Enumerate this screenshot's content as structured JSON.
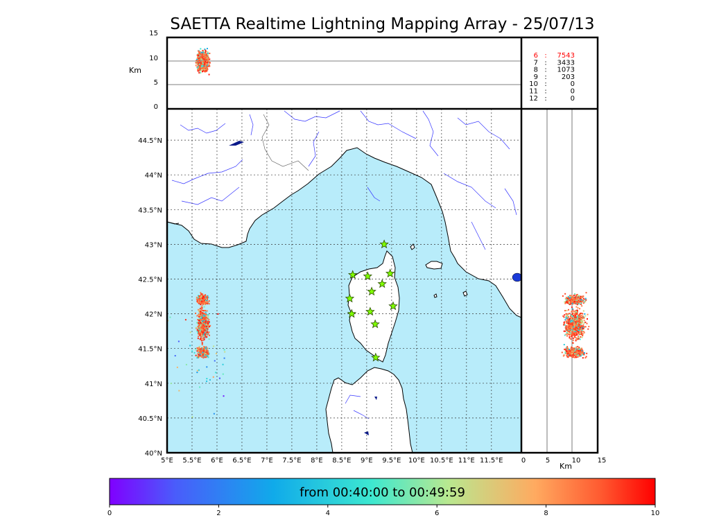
{
  "title": "SAETTA Realtime Lightning Mapping Array - 25/07/13",
  "top_panel": {
    "ylabel": "Km",
    "yticks": [
      "15",
      "10",
      "5",
      "0"
    ]
  },
  "map": {
    "lat_labels": [
      "44.5°N",
      "44°N",
      "43.5°N",
      "43°N",
      "42.5°N",
      "42°N",
      "41.5°N",
      "41°N",
      "40.5°N",
      "40°N"
    ],
    "lon_labels": [
      "5°E",
      "5.5°E",
      "6°E",
      "6.5°E",
      "7°E",
      "7.5°E",
      "8°E",
      "8.5°E",
      "9°E",
      "9.5°E",
      "10°E",
      "10.5°E",
      "11°E",
      "11.5°E"
    ],
    "sea_color": "#b8ecfa",
    "land_color": "#ffffff",
    "stations": [
      {
        "lon": 9.35,
        "lat": 43.0
      },
      {
        "lon": 8.72,
        "lat": 42.56
      },
      {
        "lon": 9.02,
        "lat": 42.54
      },
      {
        "lon": 9.47,
        "lat": 42.58
      },
      {
        "lon": 9.1,
        "lat": 42.32
      },
      {
        "lon": 9.31,
        "lat": 42.43
      },
      {
        "lon": 8.66,
        "lat": 42.22
      },
      {
        "lon": 9.53,
        "lat": 42.11
      },
      {
        "lon": 9.07,
        "lat": 42.03
      },
      {
        "lon": 8.7,
        "lat": 42.0
      },
      {
        "lon": 9.17,
        "lat": 41.85
      },
      {
        "lon": 9.18,
        "lat": 41.37
      }
    ]
  },
  "side_panel": {
    "xlabel": "Km",
    "xticks": [
      "0",
      "5",
      "10",
      "15"
    ]
  },
  "station_counts": [
    {
      "n": "6",
      "sep": ":",
      "count": "7543",
      "highlight": true
    },
    {
      "n": "7",
      "sep": ":",
      "count": "3433",
      "highlight": false
    },
    {
      "n": "8",
      "sep": ":",
      "count": "1073",
      "highlight": false
    },
    {
      "n": "9",
      "sep": ":",
      "count": "203",
      "highlight": false
    },
    {
      "n": "10",
      "sep": ":",
      "count": "0",
      "highlight": false
    },
    {
      "n": "11",
      "sep": ":",
      "count": "0",
      "highlight": false
    },
    {
      "n": "12",
      "sep": ":",
      "count": "0",
      "highlight": false
    }
  ],
  "colorbar": {
    "label": "from 00:40:00 to 00:49:59",
    "ticks": [
      "0",
      "2",
      "4",
      "6",
      "8",
      "10"
    ]
  },
  "colors": {
    "highlight": "#ff0000",
    "station_fill": "#7fff00",
    "frame": "#000000",
    "rivers": "#3333ff"
  }
}
